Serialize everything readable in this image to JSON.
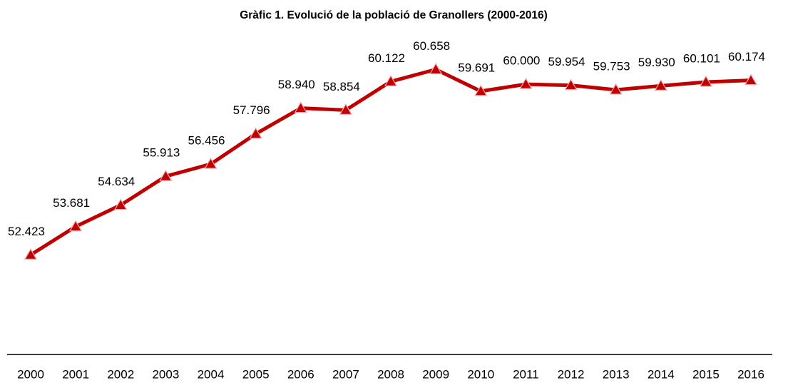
{
  "chart_data": {
    "type": "line",
    "title": "Gràfic 1. Evolució de la població de Granollers (2000-2016)",
    "categories": [
      "2000",
      "2001",
      "2002",
      "2003",
      "2004",
      "2005",
      "2006",
      "2007",
      "2008",
      "2009",
      "2010",
      "2011",
      "2012",
      "2013",
      "2014",
      "2015",
      "2016"
    ],
    "series": [
      {
        "color": "#c00000",
        "values": [
          52423,
          53681,
          54634,
          55913,
          56456,
          57796,
          58940,
          58854,
          60122,
          60658,
          59691,
          60000,
          59954,
          59753,
          59930,
          60101,
          60174
        ],
        "value_labels": [
          "52.423",
          "53.681",
          "54.634",
          "55.913",
          "56.456",
          "57.796",
          "58.940",
          "58.854",
          "60.122",
          "60.658",
          "59.691",
          "60.000",
          "59.954",
          "59.753",
          "59.930",
          "60.101",
          "60.174"
        ]
      }
    ],
    "ylim": [
      48000,
      62000
    ]
  }
}
